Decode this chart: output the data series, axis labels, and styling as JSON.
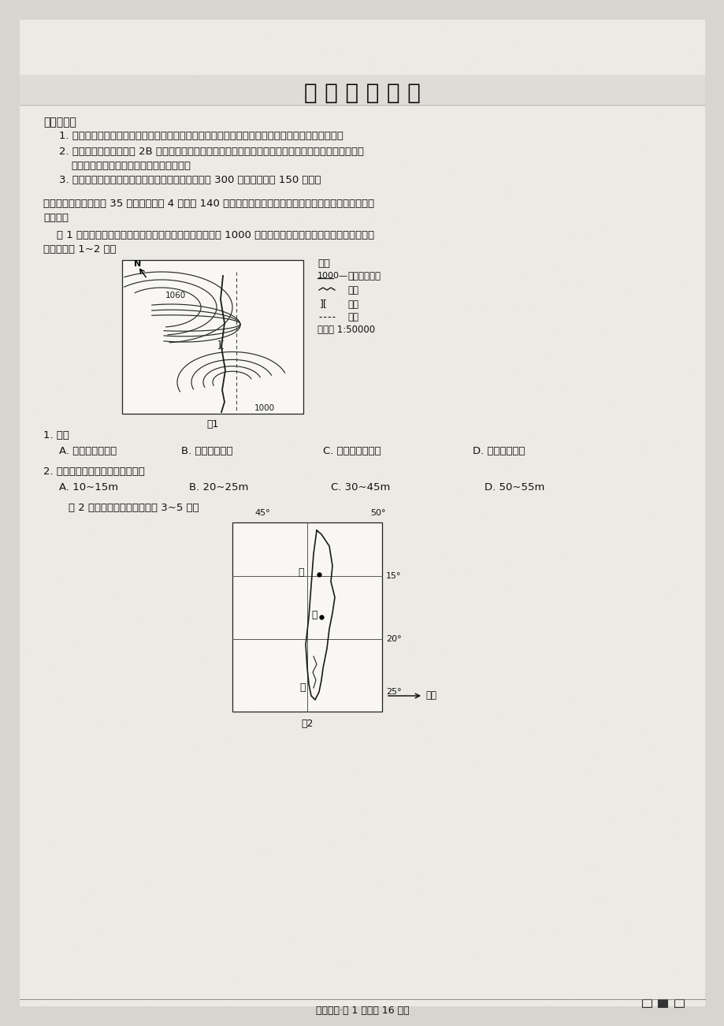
{
  "bg_color": "#d8d4ce",
  "paper_color": "#eceae5",
  "title": "文 科 综 合 试 卷",
  "footer_text": "文科综合·第 1 页（共 16 页）",
  "fig1_label": "图1",
  "fig2_label": "图2",
  "fig1_legend_title": "图例",
  "q1_text": "1. 图中",
  "q2_text": "2. 此时船与桥面的相对高度可能在",
  "q2_fig2_desc": "    图 2 为某岛略图。读图，完成 3~5 题。",
  "attention_header": "注意事项：",
  "item1": "1. 答题前，考生务必用黑色碳素笔将自己的姓名、准考证号、考场号、座位号在答题卡上填写清楚。",
  "item2a": "2. 每小题选出答案后，用 2B 铅笔把答题卡上对应题目的答案标号涂黑。如需改动，用橡皮擦干净后，再",
  "item2b": "选涂其他答案标号。在试题卷上作答无效。",
  "item3": "3. 考试结束后，请将本试卷和答题卡一并交回。满分 300 分，考试用时 150 分钟。",
  "section1a": "一、选择题（本大题共 35 小题，每小题 4 分，共 140 分。在每小题给出的四个选项中，只有一项是符合题目",
  "section1b": "要求的）",
  "desc1a": "    图 1 为我国某地局部等高线地形图，图中桥梁桥面海拔约 1000 米，此时正好有一艘船行驶在桥下河面上。",
  "desc1b": "读图，完成 1~2 题。",
  "q1_opts": [
    "A. 河流自西流向东",
    "B. 隧道穿过山脊",
    "C. 河流有凌汛现象",
    "D. 桥梁跨越山脊"
  ],
  "q2_opts": [
    "A. 10~15m",
    "B. 20~25m",
    "C. 30~45m",
    "D. 50~55m"
  ]
}
